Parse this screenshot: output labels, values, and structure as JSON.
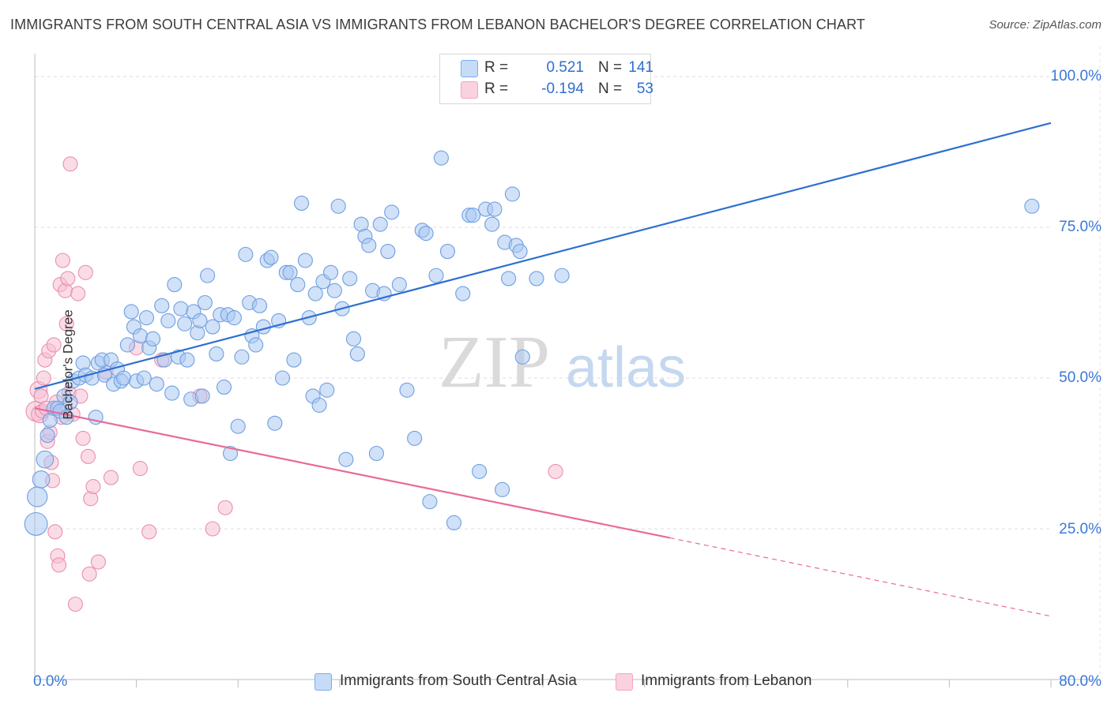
{
  "title": "IMMIGRANTS FROM SOUTH CENTRAL ASIA VS IMMIGRANTS FROM LEBANON BACHELOR'S DEGREE CORRELATION CHART",
  "source": "Source: ZipAtlas.com",
  "watermark": {
    "zip": "ZIP",
    "atlas": "atlas"
  },
  "legend": {
    "r_label": "R =",
    "n_label": "N =",
    "rows": [
      {
        "r": "0.521",
        "n": "141",
        "color": "#7aaef0"
      },
      {
        "r": "-0.194",
        "n": "53",
        "color": "#f4a6c0"
      }
    ]
  },
  "bottom_legend": [
    "Immigrants from South Central Asia",
    "Immigrants from Lebanon"
  ],
  "x_axis": {
    "min_label": "0.0%",
    "max_label": "80.0%"
  },
  "y_axis": {
    "label": "Bachelor's Degree",
    "ticks": [
      "100.0%",
      "75.0%",
      "50.0%",
      "25.0%"
    ]
  },
  "colors": {
    "blue_fill": "#a9c8f3",
    "blue_stroke": "#6f9fe0",
    "blue_line": "#2f6fd0",
    "pink_fill": "#f6c0d2",
    "pink_stroke": "#eb8fb0",
    "pink_line": "#e86a98",
    "accent_text": "#3a78d8"
  },
  "chart_data": {
    "type": "scatter",
    "title": "IMMIGRANTS FROM SOUTH CENTRAL ASIA VS IMMIGRANTS FROM LEBANON BACHELOR'S DEGREE CORRELATION CHART",
    "xlabel": "",
    "ylabel": "Bachelor's Degree",
    "xlim": [
      0,
      80
    ],
    "ylim": [
      0,
      105
    ],
    "y_ticks": [
      25,
      50,
      75,
      100
    ],
    "grid": true,
    "series": [
      {
        "name": "Immigrants from South Central Asia",
        "r": 0.521,
        "n": 141,
        "trend": {
          "x0": 0,
          "y0": 48.2,
          "x1": 80,
          "y1": 92.3
        },
        "points": [
          [
            0.1,
            25.8,
            1.6
          ],
          [
            0.2,
            30.3,
            1.4
          ],
          [
            0.5,
            33.2,
            1.2
          ],
          [
            0.8,
            36.5,
            1.2
          ],
          [
            1.0,
            40.5,
            1
          ],
          [
            1.2,
            43.0,
            1
          ],
          [
            1.5,
            45.0,
            1
          ],
          [
            1.8,
            45.0,
            1
          ],
          [
            2.0,
            44.5,
            1
          ],
          [
            2.3,
            47.0,
            1
          ],
          [
            2.5,
            43.5,
            1
          ],
          [
            2.8,
            46.0,
            1
          ],
          [
            3.0,
            49.5,
            1
          ],
          [
            3.5,
            50.0,
            1
          ],
          [
            3.8,
            52.5,
            1
          ],
          [
            4.0,
            50.5,
            1
          ],
          [
            4.5,
            50.0,
            1
          ],
          [
            4.8,
            43.5,
            1
          ],
          [
            5.0,
            52.5,
            1
          ],
          [
            5.3,
            53.0,
            1
          ],
          [
            5.5,
            50.5,
            1
          ],
          [
            6.0,
            53.0,
            1
          ],
          [
            6.2,
            49.0,
            1
          ],
          [
            6.5,
            51.5,
            1
          ],
          [
            6.8,
            49.5,
            1
          ],
          [
            7.0,
            50.0,
            1
          ],
          [
            7.3,
            55.5,
            1
          ],
          [
            7.6,
            61.0,
            1
          ],
          [
            7.8,
            58.5,
            1
          ],
          [
            8.0,
            49.5,
            1
          ],
          [
            8.3,
            57.0,
            1
          ],
          [
            8.6,
            50.0,
            1
          ],
          [
            8.8,
            60.0,
            1
          ],
          [
            9.0,
            55.0,
            1
          ],
          [
            9.3,
            56.5,
            1
          ],
          [
            9.6,
            49.0,
            1
          ],
          [
            10.0,
            62.0,
            1
          ],
          [
            10.2,
            53.0,
            1
          ],
          [
            10.5,
            59.5,
            1
          ],
          [
            10.8,
            47.5,
            1
          ],
          [
            11.0,
            65.5,
            1
          ],
          [
            11.3,
            53.5,
            1
          ],
          [
            11.5,
            61.5,
            1
          ],
          [
            11.8,
            59.0,
            1
          ],
          [
            12.0,
            53.0,
            1
          ],
          [
            12.3,
            46.5,
            1
          ],
          [
            12.5,
            61.0,
            1
          ],
          [
            12.8,
            57.5,
            1
          ],
          [
            13.0,
            59.5,
            1
          ],
          [
            13.2,
            47.0,
            1
          ],
          [
            13.4,
            62.5,
            1
          ],
          [
            13.6,
            67.0,
            1
          ],
          [
            14.0,
            58.5,
            1
          ],
          [
            14.3,
            54.0,
            1
          ],
          [
            14.6,
            60.5,
            1
          ],
          [
            14.9,
            48.5,
            1
          ],
          [
            15.2,
            60.5,
            1
          ],
          [
            15.4,
            37.5,
            1
          ],
          [
            15.7,
            60.0,
            1
          ],
          [
            16.0,
            42.0,
            1
          ],
          [
            16.3,
            53.5,
            1
          ],
          [
            16.6,
            70.5,
            1
          ],
          [
            16.9,
            62.5,
            1
          ],
          [
            17.1,
            57.0,
            1
          ],
          [
            17.4,
            55.5,
            1
          ],
          [
            17.7,
            62.0,
            1
          ],
          [
            18.0,
            58.5,
            1
          ],
          [
            18.3,
            69.5,
            1
          ],
          [
            18.6,
            70.0,
            1
          ],
          [
            18.9,
            42.5,
            1
          ],
          [
            19.2,
            59.5,
            1
          ],
          [
            19.5,
            50.0,
            1
          ],
          [
            19.8,
            67.5,
            1
          ],
          [
            20.1,
            67.5,
            1
          ],
          [
            20.4,
            53.0,
            1
          ],
          [
            20.7,
            65.5,
            1
          ],
          [
            21.0,
            79.0,
            1
          ],
          [
            21.3,
            69.5,
            1
          ],
          [
            21.6,
            60.0,
            1
          ],
          [
            21.9,
            47.0,
            1
          ],
          [
            22.1,
            64.0,
            1
          ],
          [
            22.4,
            45.5,
            1
          ],
          [
            22.7,
            66.0,
            1
          ],
          [
            23.0,
            48.0,
            1
          ],
          [
            23.3,
            67.5,
            1
          ],
          [
            23.6,
            64.5,
            1
          ],
          [
            23.9,
            78.5,
            1
          ],
          [
            24.2,
            61.5,
            1
          ],
          [
            24.5,
            36.5,
            1
          ],
          [
            24.8,
            66.5,
            1
          ],
          [
            25.1,
            56.5,
            1
          ],
          [
            25.4,
            54.0,
            1
          ],
          [
            25.7,
            75.5,
            1
          ],
          [
            26.0,
            73.5,
            1
          ],
          [
            26.3,
            72.0,
            1
          ],
          [
            26.6,
            64.5,
            1
          ],
          [
            26.9,
            37.5,
            1
          ],
          [
            27.2,
            75.5,
            1
          ],
          [
            27.5,
            64.0,
            1
          ],
          [
            27.8,
            71.0,
            1
          ],
          [
            28.1,
            77.5,
            1
          ],
          [
            28.7,
            65.5,
            1
          ],
          [
            29.3,
            48.0,
            1
          ],
          [
            29.9,
            40.0,
            1
          ],
          [
            30.5,
            74.5,
            1
          ],
          [
            30.8,
            74.0,
            1
          ],
          [
            31.1,
            29.5,
            1
          ],
          [
            31.6,
            67.0,
            1
          ],
          [
            32.0,
            86.5,
            1
          ],
          [
            32.5,
            71.0,
            1
          ],
          [
            33.0,
            26.0,
            1
          ],
          [
            33.7,
            64.0,
            1
          ],
          [
            34.2,
            77.0,
            1
          ],
          [
            34.5,
            77.0,
            1
          ],
          [
            35.0,
            34.5,
            1
          ],
          [
            35.5,
            78.0,
            1
          ],
          [
            36.0,
            75.5,
            1
          ],
          [
            36.2,
            78.0,
            1
          ],
          [
            36.8,
            31.5,
            1
          ],
          [
            37.0,
            72.5,
            1
          ],
          [
            37.3,
            66.5,
            1
          ],
          [
            37.6,
            80.5,
            1
          ],
          [
            37.9,
            72.0,
            1
          ],
          [
            38.2,
            71.0,
            1
          ],
          [
            38.4,
            53.5,
            1
          ],
          [
            39.5,
            66.5,
            1
          ],
          [
            41.5,
            67.0,
            1
          ],
          [
            78.5,
            78.5,
            1
          ]
        ]
      },
      {
        "name": "Immigrants from Lebanon",
        "r": -0.194,
        "n": 53,
        "trend": {
          "x0": 0,
          "y0": 45.0,
          "x1": 50,
          "y1": 23.5,
          "dashed_to_x": 80,
          "dashed_to_y": 10.5
        },
        "points": [
          [
            0.1,
            44.5,
            1.4
          ],
          [
            0.3,
            48.0,
            1.2
          ],
          [
            0.4,
            44.0,
            1.2
          ],
          [
            0.5,
            47.0,
            1
          ],
          [
            0.6,
            44.5,
            1
          ],
          [
            0.7,
            50.0,
            1
          ],
          [
            0.8,
            53.0,
            1
          ],
          [
            0.9,
            45.0,
            1
          ],
          [
            1.0,
            39.5,
            1
          ],
          [
            1.1,
            54.5,
            1
          ],
          [
            1.2,
            41.0,
            1
          ],
          [
            1.3,
            36.0,
            1
          ],
          [
            1.4,
            33.0,
            1
          ],
          [
            1.5,
            55.5,
            1
          ],
          [
            1.6,
            24.5,
            1
          ],
          [
            1.7,
            46.0,
            1
          ],
          [
            1.8,
            20.5,
            1
          ],
          [
            1.9,
            19.0,
            1
          ],
          [
            2.0,
            65.5,
            1
          ],
          [
            2.1,
            43.5,
            1
          ],
          [
            2.2,
            69.5,
            1
          ],
          [
            2.3,
            45.0,
            1
          ],
          [
            2.4,
            64.5,
            1
          ],
          [
            2.5,
            59.0,
            1
          ],
          [
            2.6,
            66.5,
            1
          ],
          [
            2.7,
            47.5,
            1
          ],
          [
            2.8,
            85.5,
            1
          ],
          [
            3.0,
            44.0,
            1
          ],
          [
            3.2,
            12.5,
            1
          ],
          [
            3.4,
            64.0,
            1
          ],
          [
            3.6,
            47.0,
            1
          ],
          [
            3.8,
            40.0,
            1
          ],
          [
            4.0,
            67.5,
            1
          ],
          [
            4.2,
            37.0,
            1
          ],
          [
            4.3,
            17.5,
            1
          ],
          [
            4.4,
            30.0,
            1
          ],
          [
            4.6,
            32.0,
            1
          ],
          [
            5.0,
            19.5,
            1
          ],
          [
            5.6,
            51.0,
            1
          ],
          [
            6.0,
            33.5,
            1
          ],
          [
            8.0,
            55.0,
            1
          ],
          [
            8.3,
            35.0,
            1
          ],
          [
            9.0,
            24.5,
            1
          ],
          [
            10.0,
            53.0,
            1
          ],
          [
            13.0,
            47.0,
            1
          ],
          [
            14.0,
            25.0,
            1
          ],
          [
            15.0,
            28.5,
            1
          ],
          [
            41.0,
            34.5,
            1
          ]
        ]
      }
    ]
  }
}
